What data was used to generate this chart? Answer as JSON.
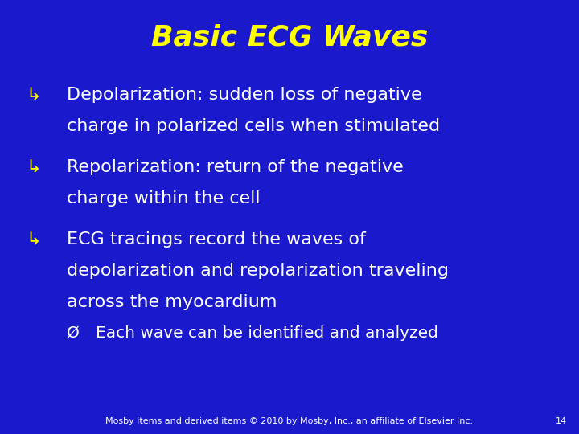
{
  "title": "Basic ECG Waves",
  "title_color": "#FFFF00",
  "title_fontsize": 26,
  "background_color": "#1a1aCC",
  "text_color": "#FFFFFF",
  "bullet_color": "#FFFF00",
  "bullet1_line1": "Depolarization: sudden loss of negative",
  "bullet1_line2": "charge in polarized cells when stimulated",
  "bullet2_line1": "Repolarization: return of the negative",
  "bullet2_line2": "charge within the cell",
  "bullet3_line1": "ECG tracings record the waves of",
  "bullet3_line2": "depolarization and repolarization traveling",
  "bullet3_line3": "across the myocardium",
  "sub_bullet": "Each wave can be identified and analyzed",
  "footer": "Mosby items and derived items © 2010 by Mosby, Inc., an affiliate of Elsevier Inc.",
  "page_num": "14",
  "footer_color": "#FFFFFF",
  "footer_fontsize": 8,
  "content_fontsize": 16,
  "sub_fontsize": 14.5
}
